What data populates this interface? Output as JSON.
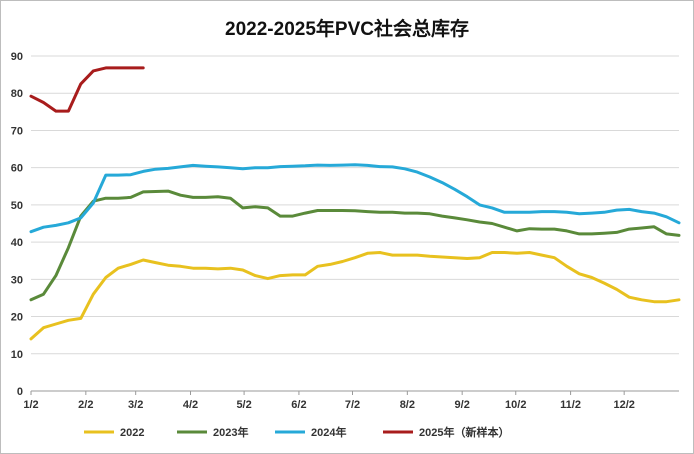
{
  "chart_data": {
    "type": "line",
    "title": "2022-2025年PVC社会总库存",
    "xlabel": "",
    "ylabel": "",
    "ylim": [
      0,
      90
    ],
    "yticks": [
      0,
      10,
      20,
      30,
      40,
      50,
      60,
      70,
      80,
      90
    ],
    "xlim": [
      0,
      52
    ],
    "xtick_labels": [
      "1/2",
      "2/2",
      "3/2",
      "4/2",
      "5/2",
      "6/2",
      "7/2",
      "8/2",
      "9/2",
      "10/2",
      "11/2",
      "12/2"
    ],
    "xtick_weeks": [
      0,
      4.4,
      8.4,
      12.8,
      17.1,
      21.5,
      25.8,
      30.2,
      34.6,
      38.9,
      43.3,
      47.6
    ],
    "grid": true,
    "legend_position": "bottom",
    "series": [
      {
        "name": "2022",
        "color": "#e8c11f",
        "x": [
          0,
          1,
          2,
          3,
          4,
          5,
          6,
          7,
          8,
          9,
          10,
          11,
          12,
          13,
          14,
          15,
          16,
          17,
          18,
          19,
          20,
          21,
          22,
          23,
          24,
          25,
          26,
          27,
          28,
          29,
          30,
          31,
          32,
          33,
          34,
          35,
          36,
          37,
          38,
          39,
          40,
          41,
          42,
          43,
          44,
          45,
          46,
          47,
          48,
          49,
          50,
          51,
          52
        ],
        "values": [
          14,
          17,
          18,
          19,
          19.5,
          26,
          30.5,
          33,
          34,
          35.2,
          34.5,
          33.8,
          33.5,
          33,
          33,
          32.8,
          33,
          32.5,
          31,
          30.2,
          31,
          31.2,
          31.2,
          33.5,
          34,
          34.8,
          35.8,
          37,
          37.2,
          36.5,
          36.5,
          36.5,
          36.2,
          36,
          35.8,
          35.6,
          35.8,
          37.2,
          37.2,
          37,
          37.2,
          36.5,
          35.8,
          33.5,
          31.5,
          30.5,
          29,
          27.3,
          25.2,
          24.5,
          24,
          24,
          24.5
        ]
      },
      {
        "name": "2023年",
        "color": "#5a8a3a",
        "x": [
          0,
          1,
          2,
          3,
          4,
          5,
          6,
          7,
          8,
          9,
          10,
          11,
          12,
          13,
          14,
          15,
          16,
          17,
          18,
          19,
          20,
          21,
          22,
          23,
          24,
          25,
          26,
          27,
          28,
          29,
          30,
          31,
          32,
          33,
          34,
          35,
          36,
          37,
          38,
          39,
          40,
          41,
          42,
          43,
          44,
          45,
          46,
          47,
          48,
          49,
          50,
          51,
          52
        ],
        "values": [
          24.5,
          26,
          31,
          38.5,
          47,
          51,
          51.8,
          51.8,
          52,
          53.5,
          53.6,
          53.7,
          52.6,
          52,
          52,
          52.2,
          51.8,
          49.2,
          49.5,
          49.2,
          47,
          47,
          47.8,
          48.5,
          48.5,
          48.5,
          48.4,
          48.2,
          48,
          48,
          47.8,
          47.8,
          47.6,
          47,
          46.5,
          46,
          45.4,
          45,
          44,
          43,
          43.6,
          43.5,
          43.5,
          43,
          42.2,
          42.2,
          42.4,
          42.6,
          43.5,
          43.8,
          44.1,
          42.2,
          41.8
        ]
      },
      {
        "name": "2024年",
        "color": "#26a9d8",
        "x": [
          0,
          1,
          2,
          3,
          4,
          5,
          6,
          7,
          8,
          9,
          10,
          11,
          12,
          13,
          14,
          15,
          16,
          17,
          18,
          19,
          20,
          21,
          22,
          23,
          24,
          25,
          26,
          27,
          28,
          29,
          30,
          31,
          32,
          33,
          34,
          35,
          36,
          37,
          38,
          39,
          40,
          41,
          42,
          43,
          44,
          45,
          46,
          47,
          48,
          49,
          50,
          51,
          52
        ],
        "values": [
          42.8,
          44,
          44.5,
          45.2,
          46.5,
          50.5,
          58,
          58,
          58.1,
          59,
          59.6,
          59.8,
          60.2,
          60.6,
          60.4,
          60.2,
          60,
          59.7,
          60,
          60,
          60.3,
          60.4,
          60.5,
          60.7,
          60.6,
          60.7,
          60.8,
          60.6,
          60.3,
          60.2,
          59.7,
          58.8,
          57.5,
          56,
          54.2,
          52.2,
          50,
          49.2,
          48,
          48,
          48,
          48.2,
          48.2,
          48,
          47.6,
          47.8,
          48,
          48.6,
          48.8,
          48.2,
          47.8,
          46.8,
          45.2
        ]
      },
      {
        "name": "2025年（新样本）",
        "color": "#a81c1c",
        "x": [
          0,
          1,
          2,
          3,
          4,
          5,
          6,
          7,
          8,
          9
        ],
        "values": [
          79.2,
          77.5,
          75.2,
          75.2,
          82.5,
          86,
          86.8,
          86.8,
          86.8,
          86.8
        ]
      }
    ]
  }
}
